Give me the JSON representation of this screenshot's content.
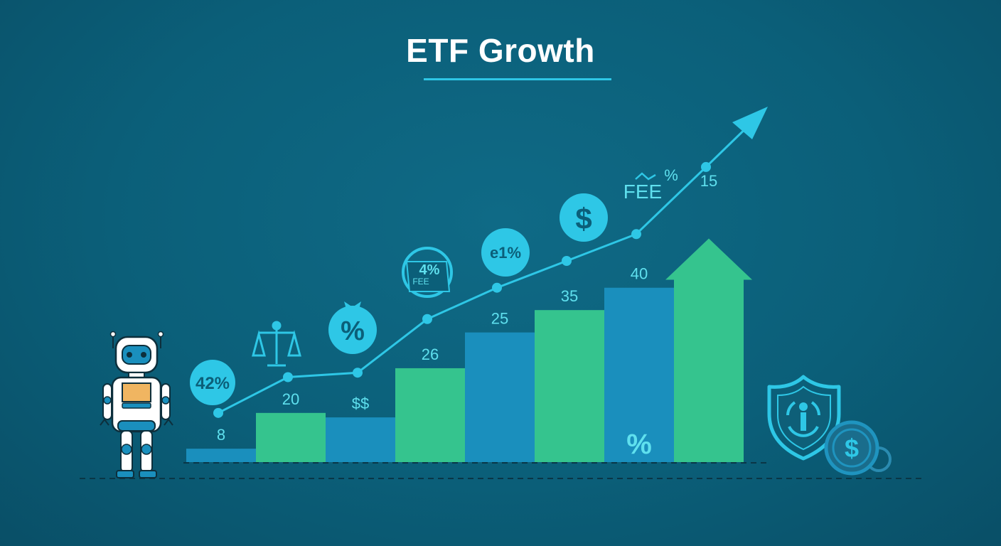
{
  "colors": {
    "background": "#0b5f79",
    "accent": "#2ec7e6",
    "bar_green": "#35c48e",
    "bar_blue": "#1a8fbd",
    "label": "#5fe0ee"
  },
  "chart_data": {
    "type": "bar",
    "title": "ETF Growth",
    "xlabel": "",
    "ylabel": "",
    "grid": false,
    "legend": "none",
    "ylim": [
      0,
      45
    ],
    "bars": [
      {
        "label": "8",
        "value": 1.5,
        "color": "blue"
      },
      {
        "label": "20",
        "value": 5.5,
        "color": "green"
      },
      {
        "label": "$$",
        "value": 5.0,
        "color": "blue"
      },
      {
        "label": "26",
        "value": 10.5,
        "color": "green"
      },
      {
        "label": "25",
        "value": 14.5,
        "color": "blue"
      },
      {
        "label": "35",
        "value": 17.0,
        "color": "green"
      },
      {
        "label": "40",
        "value": 19.5,
        "color": "blue",
        "inner_label": "%"
      },
      {
        "label": "15",
        "value": 25.0,
        "color": "green",
        "arrow_top": true
      }
    ],
    "trend_line": {
      "values": [
        5.5,
        9.5,
        10.0,
        16.0,
        19.5,
        22.5,
        25.5,
        33.0
      ]
    },
    "badges": [
      {
        "text": "42%",
        "icon": "percent-badge-icon"
      },
      {
        "text": "",
        "icon": "scales-icon"
      },
      {
        "text": "%",
        "icon": "money-bag-percent-icon"
      },
      {
        "text": "4%",
        "subtext": "FEE",
        "icon": "fee-tag-icon"
      },
      {
        "text": "e1%",
        "icon": "percent-coin-icon"
      },
      {
        "text": "$",
        "icon": "dollar-coin-icon"
      },
      {
        "text": "FEE",
        "superscript": "%",
        "icon": "fee-label-icon"
      }
    ],
    "decor": {
      "robot": "robot-icon",
      "shield": "shield-icon",
      "coin": "dollar-coin-icon",
      "coin_symbol": "$"
    }
  }
}
